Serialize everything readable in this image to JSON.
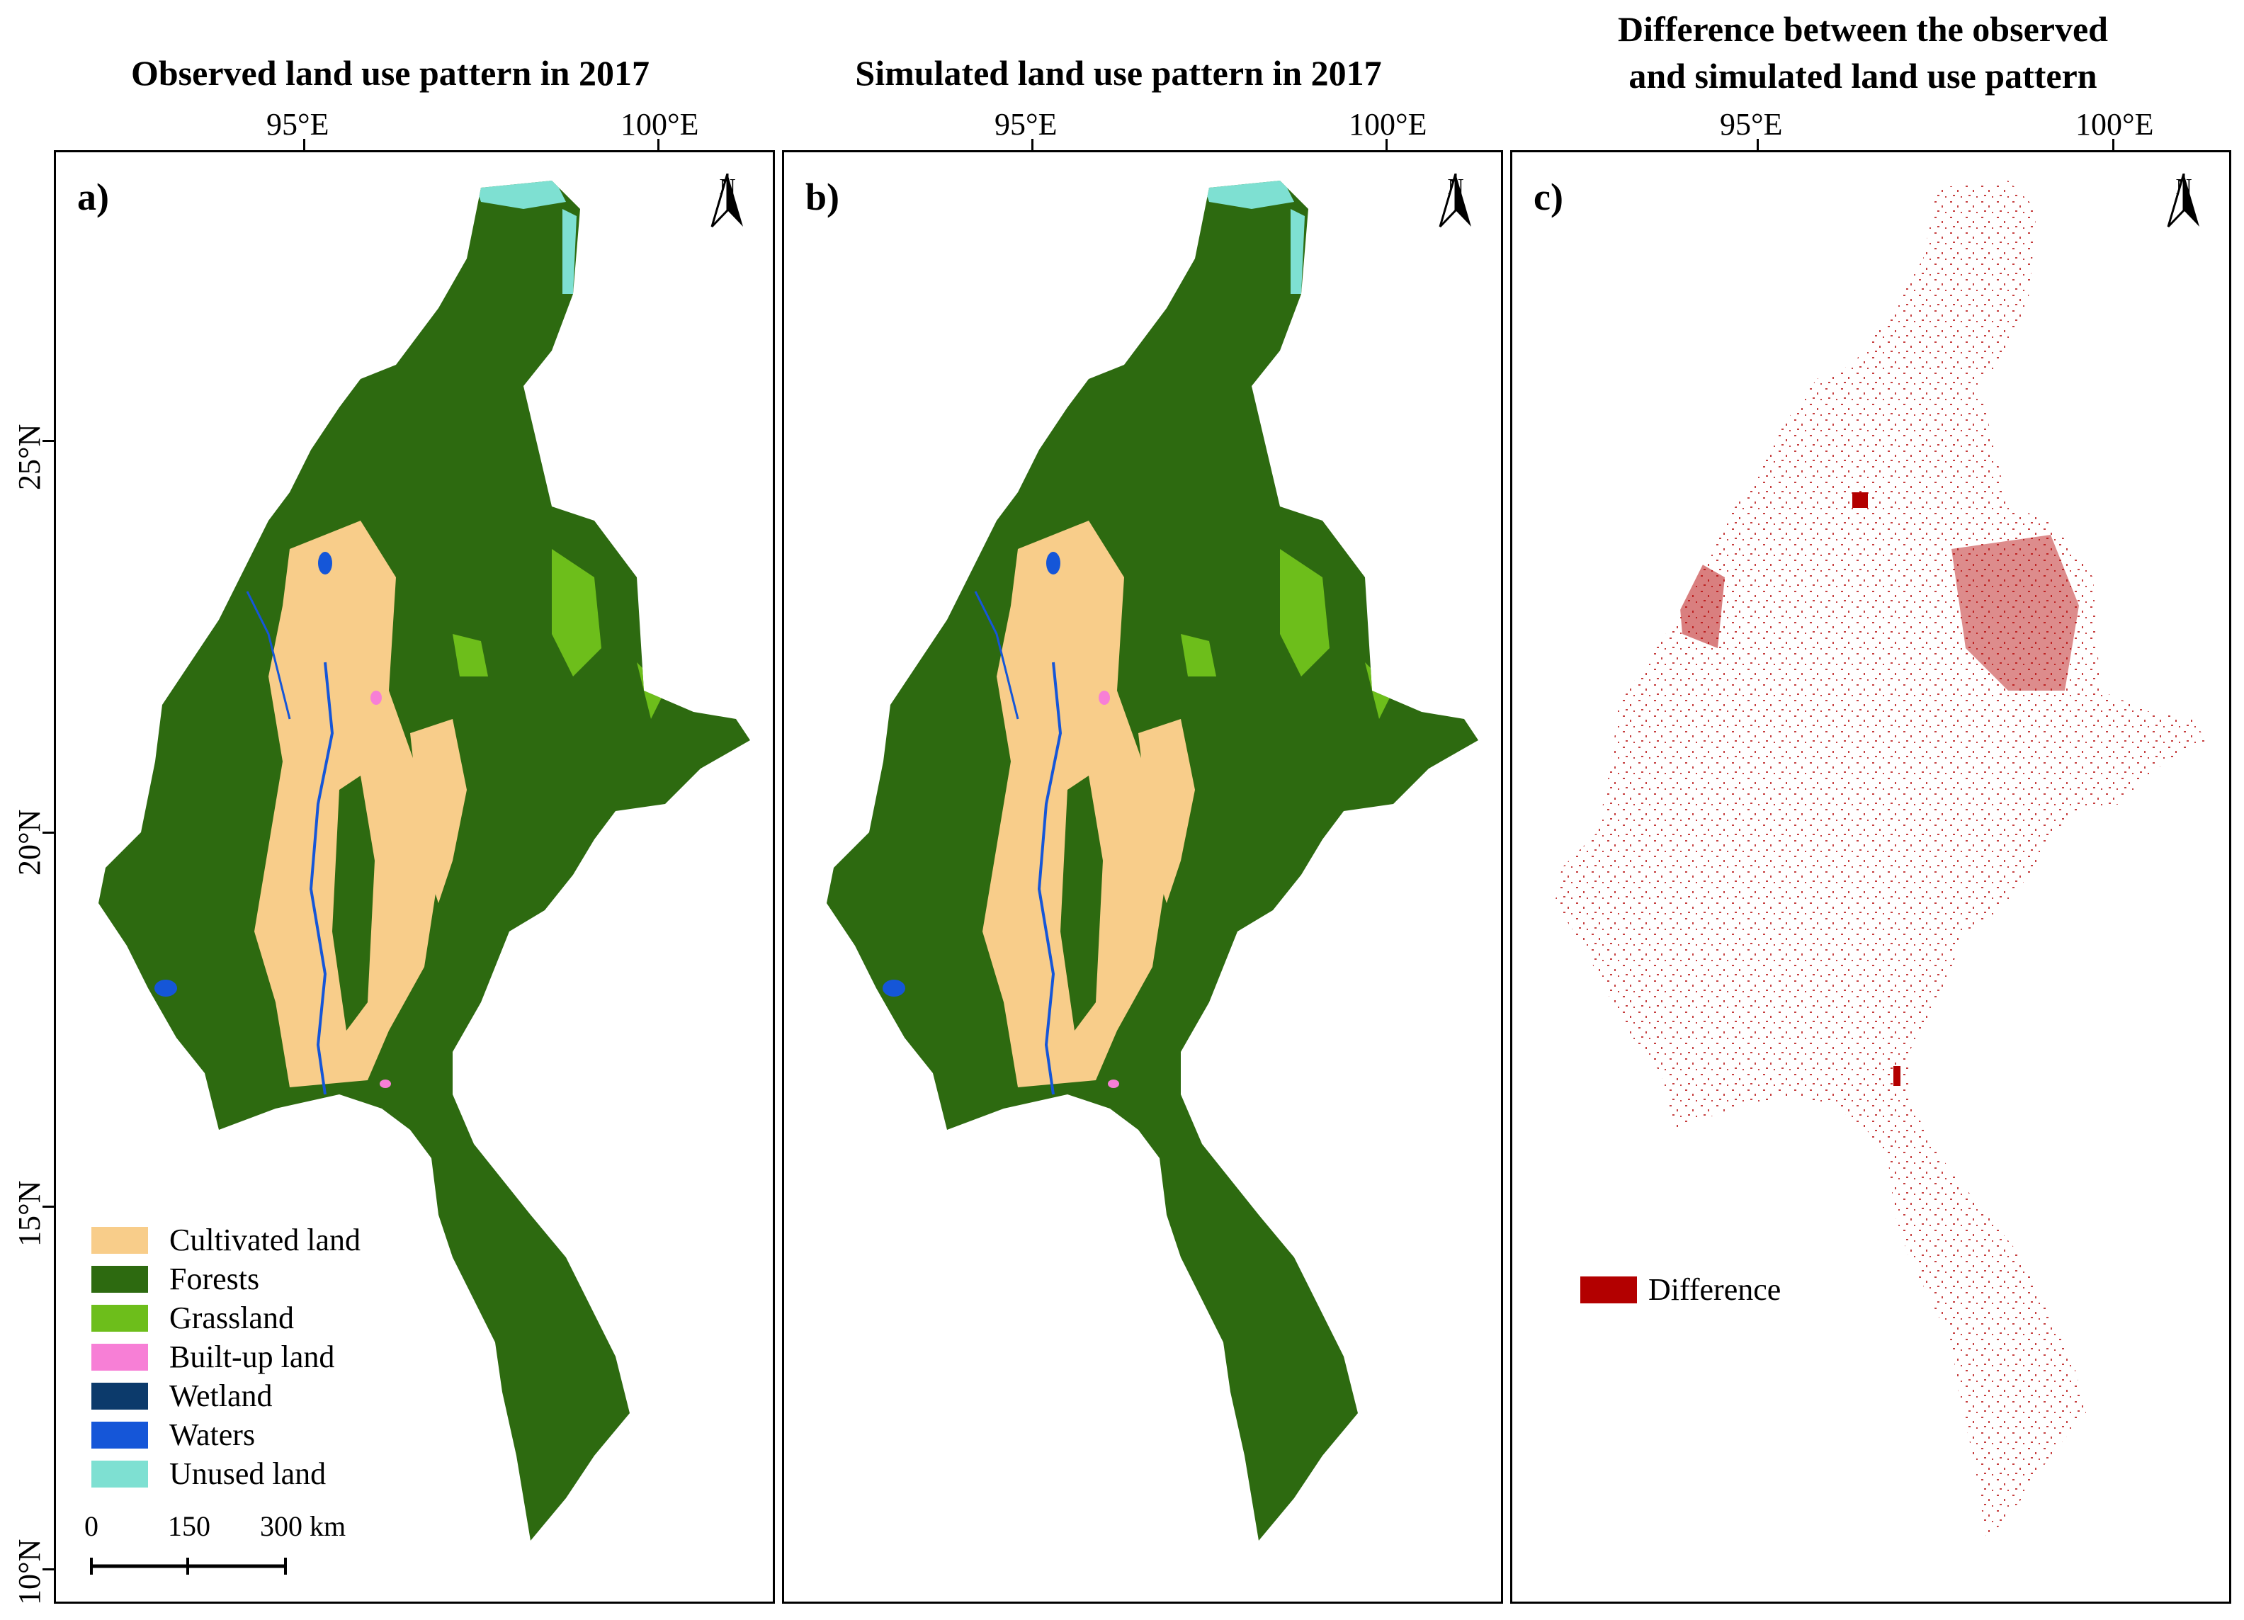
{
  "titles": {
    "a": "Observed land use pattern in 2017",
    "b": "Simulated land use pattern in 2017",
    "c_line1": "Difference between the observed",
    "c_line2": "and simulated land use pattern"
  },
  "lon_labels": [
    "95°E",
    "100°E"
  ],
  "lat_labels": [
    "25°N",
    "20°N",
    "15°N",
    "10°N"
  ],
  "panels": {
    "a": {
      "letter": "a)"
    },
    "b": {
      "letter": "b)"
    },
    "c": {
      "letter": "c)"
    }
  },
  "north_label": "N",
  "legend": {
    "items": [
      {
        "label": "Cultivated land",
        "color": "#f8cd8a"
      },
      {
        "label": "Forests",
        "color": "#2d6a10"
      },
      {
        "label": "Grassland",
        "color": "#6dbe1b"
      },
      {
        "label": "Built-up land",
        "color": "#f77fd6"
      },
      {
        "label": "Wetland",
        "color": "#0c3a6b"
      },
      {
        "label": "Waters",
        "color": "#1556d8"
      },
      {
        "label": "Unused land",
        "color": "#7ee0d2"
      }
    ]
  },
  "scale_bar": {
    "labels": [
      "0",
      "150",
      "300 km"
    ]
  },
  "difference_legend": {
    "label": "Difference",
    "color": "#b30000"
  }
}
